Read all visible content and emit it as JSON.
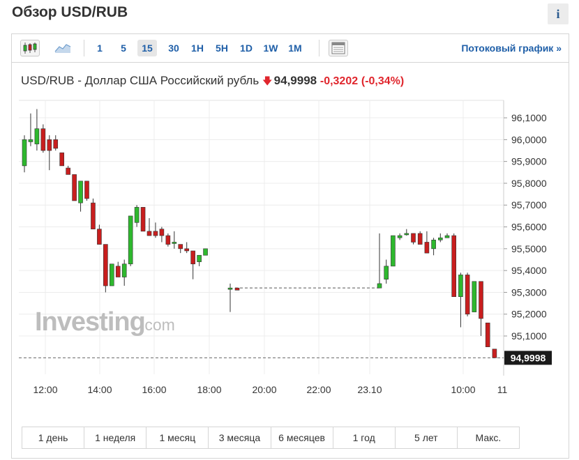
{
  "page_title": "Обзор USD/RUB",
  "info_label": "i",
  "toolbar": {
    "icons": [
      "candlestick-icon",
      "area-chart-icon",
      "table-icon"
    ],
    "intervals": [
      "1",
      "5",
      "15",
      "30",
      "1H",
      "5H",
      "1D",
      "1W",
      "1M"
    ],
    "active_interval": "15",
    "stream_link": "Потоковый график »"
  },
  "quote": {
    "pair": "USD/RUB",
    "separator": " - ",
    "name": "Доллар США Российский рубль",
    "price": "94,9998",
    "change": "-0,3202",
    "change_pct": "(-0,34%)"
  },
  "watermark": {
    "brand": "Investing",
    "suffix": ".com"
  },
  "ranges": [
    "1 день",
    "1 неделя",
    "1 месяц",
    "3 месяца",
    "6 месяцев",
    "1 год",
    "5 лет",
    "Макс."
  ],
  "colors": {
    "up": "#2eb82e",
    "down": "#c81e1e",
    "accent": "#1f5fa8",
    "change": "#e0262d"
  },
  "chart_data": {
    "type": "candlestick",
    "ylim": [
      94.95,
      96.18
    ],
    "yticks": [
      "96,1000",
      "96,0000",
      "95,9000",
      "95,8000",
      "95,7000",
      "95,6000",
      "95,5000",
      "95,4000",
      "95,3000",
      "95,2000",
      "95,1000"
    ],
    "ytick_values": [
      96.1,
      96.0,
      95.9,
      95.8,
      95.7,
      95.6,
      95.5,
      95.4,
      95.3,
      95.2,
      95.1
    ],
    "xticks": [
      "12:00",
      "14:00",
      "16:00",
      "18:00",
      "20:00",
      "22:00",
      "23.10",
      "10:00",
      "11"
    ],
    "last_price_label": "94,9998",
    "last_price": 94.9998,
    "candles": [
      {
        "time": "11:30",
        "o": 95.88,
        "h": 96.02,
        "l": 95.85,
        "c": 96.0
      },
      {
        "time": "11:45",
        "o": 95.99,
        "h": 96.12,
        "l": 95.97,
        "c": 96.0
      },
      {
        "time": "12:00",
        "o": 95.98,
        "h": 96.14,
        "l": 95.95,
        "c": 96.05
      },
      {
        "time": "12:15",
        "o": 96.05,
        "h": 96.07,
        "l": 95.94,
        "c": 95.95
      },
      {
        "time": "12:30",
        "o": 96.0,
        "h": 96.02,
        "l": 95.86,
        "c": 95.95
      },
      {
        "time": "12:45",
        "o": 96.0,
        "h": 96.02,
        "l": 95.95,
        "c": 95.96
      },
      {
        "time": "13:00",
        "o": 95.94,
        "h": 95.94,
        "l": 95.88,
        "c": 95.88
      },
      {
        "time": "13:15",
        "o": 95.87,
        "h": 95.88,
        "l": 95.84,
        "c": 95.84
      },
      {
        "time": "13:30",
        "o": 95.84,
        "h": 95.84,
        "l": 95.72,
        "c": 95.72
      },
      {
        "time": "13:45",
        "o": 95.71,
        "h": 95.81,
        "l": 95.67,
        "c": 95.81
      },
      {
        "time": "14:00",
        "o": 95.81,
        "h": 95.81,
        "l": 95.72,
        "c": 95.73
      },
      {
        "time": "14:15",
        "o": 95.71,
        "h": 95.73,
        "l": 95.59,
        "c": 95.59
      },
      {
        "time": "14:30",
        "o": 95.59,
        "h": 95.61,
        "l": 95.52,
        "c": 95.52
      },
      {
        "time": "14:45",
        "o": 95.52,
        "h": 95.52,
        "l": 95.3,
        "c": 95.33
      },
      {
        "time": "15:00",
        "o": 95.33,
        "h": 95.43,
        "l": 95.33,
        "c": 95.43
      },
      {
        "time": "15:15",
        "o": 95.42,
        "h": 95.44,
        "l": 95.37,
        "c": 95.37
      },
      {
        "time": "15:30",
        "o": 95.37,
        "h": 95.45,
        "l": 95.33,
        "c": 95.43
      },
      {
        "time": "15:45",
        "o": 95.43,
        "h": 95.65,
        "l": 95.42,
        "c": 95.65
      },
      {
        "time": "16:00",
        "o": 95.62,
        "h": 95.7,
        "l": 95.6,
        "c": 95.69
      },
      {
        "time": "16:15",
        "o": 95.69,
        "h": 95.69,
        "l": 95.58,
        "c": 95.58
      },
      {
        "time": "16:30",
        "o": 95.58,
        "h": 95.64,
        "l": 95.56,
        "c": 95.56
      },
      {
        "time": "16:45",
        "o": 95.58,
        "h": 95.62,
        "l": 95.55,
        "c": 95.56
      },
      {
        "time": "17:00",
        "o": 95.59,
        "h": 95.6,
        "l": 95.53,
        "c": 95.56
      },
      {
        "time": "17:15",
        "o": 95.56,
        "h": 95.57,
        "l": 95.51,
        "c": 95.52
      },
      {
        "time": "17:30",
        "o": 95.53,
        "h": 95.58,
        "l": 95.5,
        "c": 95.53
      },
      {
        "time": "17:45",
        "o": 95.52,
        "h": 95.52,
        "l": 95.48,
        "c": 95.5
      },
      {
        "time": "18:00",
        "o": 95.5,
        "h": 95.53,
        "l": 95.48,
        "c": 95.49
      },
      {
        "time": "18:15",
        "o": 95.49,
        "h": 95.49,
        "l": 95.36,
        "c": 95.43
      },
      {
        "time": "18:30",
        "o": 95.44,
        "h": 95.47,
        "l": 95.42,
        "c": 95.47
      },
      {
        "time": "18:45",
        "o": 95.47,
        "h": 95.5,
        "l": 95.47,
        "c": 95.5
      },
      {
        "time": "19:00",
        "o": 95.32,
        "h": 95.34,
        "l": 95.21,
        "c": 95.32
      },
      {
        "time": "19:15",
        "o": 95.32,
        "h": 95.32,
        "l": 95.31,
        "c": 95.31
      },
      {
        "time": "23.10 07:00",
        "o": 95.32,
        "h": 95.57,
        "l": 95.32,
        "c": 95.34
      },
      {
        "time": "07:15",
        "o": 95.36,
        "h": 95.45,
        "l": 95.34,
        "c": 95.42
      },
      {
        "time": "07:30",
        "o": 95.42,
        "h": 95.56,
        "l": 95.42,
        "c": 95.56
      },
      {
        "time": "07:45",
        "o": 95.55,
        "h": 95.57,
        "l": 95.54,
        "c": 95.56
      },
      {
        "time": "08:00",
        "o": 95.57,
        "h": 95.59,
        "l": 95.56,
        "c": 95.57
      },
      {
        "time": "08:15",
        "o": 95.57,
        "h": 95.57,
        "l": 95.52,
        "c": 95.53
      },
      {
        "time": "08:30",
        "o": 95.57,
        "h": 95.58,
        "l": 95.52,
        "c": 95.52
      },
      {
        "time": "08:45",
        "o": 95.53,
        "h": 95.58,
        "l": 95.48,
        "c": 95.48
      },
      {
        "time": "09:00",
        "o": 95.5,
        "h": 95.55,
        "l": 95.47,
        "c": 95.54
      },
      {
        "time": "09:15",
        "o": 95.54,
        "h": 95.57,
        "l": 95.53,
        "c": 95.55
      },
      {
        "time": "09:30",
        "o": 95.55,
        "h": 95.57,
        "l": 95.55,
        "c": 95.56
      },
      {
        "time": "09:45",
        "o": 95.56,
        "h": 95.57,
        "l": 95.28,
        "c": 95.28
      },
      {
        "time": "10:00",
        "o": 95.28,
        "h": 95.39,
        "l": 95.14,
        "c": 95.38
      },
      {
        "time": "10:15",
        "o": 95.38,
        "h": 95.39,
        "l": 95.19,
        "c": 95.2
      },
      {
        "time": "10:30",
        "o": 95.21,
        "h": 95.35,
        "l": 95.21,
        "c": 95.35
      },
      {
        "time": "10:45",
        "o": 95.35,
        "h": 95.35,
        "l": 95.1,
        "c": 95.18
      },
      {
        "time": "11:00",
        "o": 95.16,
        "h": 95.16,
        "l": 95.05,
        "c": 95.05
      },
      {
        "time": "11:15",
        "o": 95.04,
        "h": 95.04,
        "l": 95.0,
        "c": 95.0
      }
    ]
  }
}
